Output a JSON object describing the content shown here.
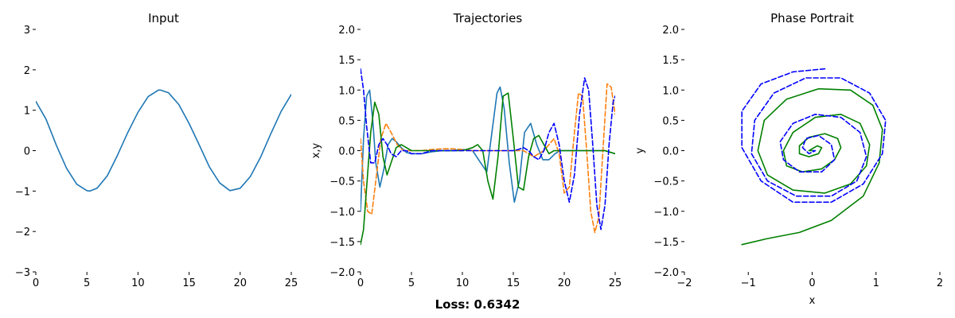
{
  "chart_data": [
    {
      "type": "line",
      "title": "Input",
      "xlabel": "",
      "ylabel": "",
      "xlim": [
        0,
        25
      ],
      "ylim": [
        -3,
        3
      ],
      "xticks": [
        0,
        5,
        10,
        15,
        20,
        25
      ],
      "yticks": [
        -3,
        -2,
        -1,
        0,
        1,
        2,
        3
      ],
      "grid": false,
      "colors": {
        "primary": "#1f77b4"
      },
      "series": [
        {
          "color": "#1f77b4",
          "dashed": false,
          "x": [
            0,
            1,
            2,
            3,
            4,
            5,
            5.3,
            6,
            7,
            8,
            9,
            10,
            11,
            12,
            12.2,
            13,
            14,
            15,
            16,
            17,
            18,
            19,
            20,
            21,
            22,
            23,
            24,
            25
          ],
          "y": [
            1.22,
            0.78,
            0.14,
            -0.43,
            -0.83,
            -0.99,
            -1.0,
            -0.93,
            -0.62,
            -0.11,
            0.45,
            0.95,
            1.34,
            1.5,
            1.5,
            1.43,
            1.14,
            0.67,
            0.14,
            -0.41,
            -0.8,
            -0.99,
            -0.93,
            -0.64,
            -0.16,
            0.42,
            0.97,
            1.39
          ]
        }
      ]
    },
    {
      "type": "line",
      "title": "Trajectories",
      "xlabel": "",
      "ylabel": "x,y",
      "xlim": [
        0,
        25
      ],
      "ylim": [
        -2.0,
        2.0
      ],
      "xticks": [
        0,
        5,
        10,
        15,
        20,
        25
      ],
      "yticks": [
        -2.0,
        -1.5,
        -1.0,
        -0.5,
        0.0,
        0.5,
        1.0,
        1.5,
        2.0
      ],
      "grid": false,
      "series": [
        {
          "color": "#1f77b4",
          "dashed": false,
          "x": [
            0,
            0.3,
            0.6,
            0.9,
            1.2,
            1.5,
            1.9,
            2.3,
            2.7,
            3.1,
            3.5,
            4.0,
            4.5,
            5,
            6,
            7,
            8,
            9,
            10,
            11,
            11.8,
            12.4,
            12.9,
            13.4,
            13.7,
            14.1,
            14.6,
            15.1,
            15.6,
            16.1,
            16.7,
            17.3,
            17.9,
            18.5,
            19.1,
            19.6,
            20,
            21,
            22,
            23,
            24,
            25
          ],
          "y": [
            -1.0,
            0.2,
            0.9,
            1.0,
            0.5,
            -0.2,
            -0.6,
            -0.3,
            0.1,
            0.2,
            0.15,
            0.05,
            -0.03,
            -0.05,
            -0.05,
            -0.02,
            0.0,
            0.0,
            0.02,
            0.0,
            -0.2,
            -0.35,
            0.3,
            0.95,
            1.05,
            0.7,
            -0.2,
            -0.85,
            -0.5,
            0.3,
            0.45,
            0.1,
            -0.15,
            -0.15,
            -0.05,
            0.0,
            0.0,
            0.0,
            0.0,
            0.0,
            0.0,
            -0.05
          ]
        },
        {
          "color": "#ff7f0e",
          "dashed": true,
          "x": [
            0,
            0.3,
            0.7,
            1.1,
            1.5,
            2.0,
            2.5,
            3.0,
            3.6,
            4.2,
            5,
            6,
            7,
            8,
            9,
            10,
            11,
            12,
            13,
            14,
            15,
            16,
            17,
            18,
            19,
            19.5,
            20,
            20.5,
            21,
            21.4,
            21.8,
            22.2,
            22.6,
            23.0,
            23.4,
            23.8,
            24.2,
            24.6,
            25
          ],
          "y": [
            0.2,
            -0.5,
            -1.0,
            -1.05,
            -0.5,
            0.2,
            0.45,
            0.3,
            0.1,
            0.0,
            0.0,
            0.0,
            0.02,
            0.03,
            0.03,
            0.02,
            0.0,
            0.0,
            0.0,
            0.0,
            0.0,
            0.0,
            -0.1,
            0.0,
            0.2,
            -0.05,
            -0.7,
            -0.6,
            0.3,
            0.95,
            0.9,
            0.0,
            -1.0,
            -1.35,
            -1.1,
            0.0,
            1.1,
            1.05,
            0.6
          ]
        },
        {
          "color": "#008000",
          "dashed": false,
          "x": [
            0,
            0.3,
            0.6,
            1.0,
            1.4,
            1.8,
            2.2,
            2.6,
            3.0,
            3.5,
            4.0,
            4.5,
            5,
            6,
            7,
            8,
            9,
            10,
            11,
            11.5,
            12,
            12.5,
            13.0,
            13.5,
            14.0,
            14.5,
            15.0,
            15.5,
            16.0,
            16.5,
            17.0,
            17.5,
            18.0,
            18.5,
            19.0,
            20,
            21,
            22,
            23,
            24,
            25
          ],
          "y": [
            -1.55,
            -1.3,
            -0.6,
            0.3,
            0.8,
            0.6,
            -0.1,
            -0.4,
            -0.2,
            0.05,
            0.1,
            0.05,
            0.0,
            0.0,
            0.0,
            0.0,
            0.0,
            0.0,
            0.05,
            0.1,
            0.0,
            -0.5,
            -0.8,
            -0.1,
            0.9,
            0.95,
            0.2,
            -0.6,
            -0.65,
            -0.1,
            0.2,
            0.25,
            0.1,
            -0.05,
            0.0,
            0.0,
            0.0,
            0.0,
            0.0,
            0.0,
            -0.05
          ]
        },
        {
          "color": "#0000ff",
          "dashed": true,
          "x": [
            0,
            0.3,
            0.6,
            1.0,
            1.4,
            1.8,
            2.2,
            2.6,
            3.0,
            3.5,
            4.0,
            4.5,
            5,
            6,
            7,
            8,
            9,
            10,
            11,
            12,
            13,
            14,
            15,
            15.5,
            16,
            16.5,
            17,
            17.5,
            18,
            18.5,
            19.0,
            19.5,
            20.0,
            20.5,
            21.0,
            21.5,
            22.0,
            22.4,
            22.8,
            23.2,
            23.6,
            24.0,
            24.4,
            24.8,
            25
          ],
          "y": [
            1.35,
            1.0,
            0.4,
            -0.2,
            -0.2,
            0.1,
            0.2,
            0.1,
            -0.05,
            -0.1,
            0.0,
            0.0,
            -0.05,
            -0.05,
            0.0,
            0.0,
            0.0,
            0.0,
            0.0,
            0.0,
            0.0,
            0.0,
            0.0,
            0.02,
            0.05,
            0.0,
            -0.1,
            -0.15,
            0.0,
            0.3,
            0.45,
            0.1,
            -0.5,
            -0.85,
            -0.4,
            0.6,
            1.2,
            1.0,
            0.1,
            -0.9,
            -1.3,
            -0.9,
            0.1,
            0.8,
            0.9
          ]
        }
      ],
      "footer": "Loss: 0.6342"
    },
    {
      "type": "line",
      "title": "Phase Portrait",
      "xlabel": "x",
      "ylabel": "y",
      "xlim": [
        -2,
        2
      ],
      "ylim": [
        -2.0,
        2.0
      ],
      "xticks": [
        -2,
        -1,
        0,
        1,
        2
      ],
      "yticks": [
        -2.0,
        -1.5,
        -1.0,
        -0.5,
        0.0,
        0.5,
        1.0,
        1.5,
        2.0
      ],
      "grid": false,
      "series": [
        {
          "color": "#008000",
          "dashed": false,
          "x": [
            -1.1,
            -0.7,
            -0.2,
            0.3,
            0.8,
            1.05,
            1.1,
            0.95,
            0.6,
            0.1,
            -0.4,
            -0.75,
            -0.85,
            -0.7,
            -0.3,
            0.2,
            0.6,
            0.85,
            0.9,
            0.75,
            0.45,
            0.05,
            -0.3,
            -0.45,
            -0.4,
            -0.15,
            0.15,
            0.35,
            0.45,
            0.4,
            0.2,
            -0.05,
            -0.2,
            -0.2,
            -0.05,
            0.1,
            0.15,
            0.08,
            0.0,
            -0.05,
            0.0
          ],
          "y": [
            -1.55,
            -1.45,
            -1.35,
            -1.15,
            -0.75,
            -0.2,
            0.35,
            0.75,
            1.0,
            1.02,
            0.85,
            0.5,
            0.0,
            -0.4,
            -0.65,
            -0.7,
            -0.55,
            -0.25,
            0.1,
            0.45,
            0.6,
            0.55,
            0.3,
            0.0,
            -0.25,
            -0.35,
            -0.3,
            -0.15,
            0.05,
            0.2,
            0.28,
            0.22,
            0.08,
            -0.05,
            -0.1,
            -0.05,
            0.05,
            0.08,
            0.03,
            0.0,
            0.0
          ]
        },
        {
          "color": "#0000ff",
          "dashed": true,
          "x": [
            0.2,
            -0.3,
            -0.8,
            -1.1,
            -1.1,
            -0.8,
            -0.3,
            0.3,
            0.8,
            1.1,
            1.15,
            0.9,
            0.45,
            -0.1,
            -0.6,
            -0.9,
            -0.95,
            -0.7,
            -0.25,
            0.3,
            0.7,
            0.85,
            0.75,
            0.45,
            0.05,
            -0.3,
            -0.5,
            -0.45,
            -0.2,
            0.15,
            0.35,
            0.3,
            0.1,
            -0.1,
            -0.15,
            -0.05,
            0.05,
            0.0
          ],
          "y": [
            1.35,
            1.3,
            1.1,
            0.65,
            0.05,
            -0.5,
            -0.85,
            -0.85,
            -0.55,
            -0.05,
            0.5,
            0.95,
            1.2,
            1.2,
            0.95,
            0.5,
            -0.05,
            -0.5,
            -0.75,
            -0.75,
            -0.5,
            -0.1,
            0.3,
            0.55,
            0.6,
            0.45,
            0.15,
            -0.15,
            -0.35,
            -0.35,
            -0.15,
            0.1,
            0.25,
            0.2,
            0.05,
            -0.05,
            0.0,
            0.0
          ]
        }
      ]
    }
  ]
}
